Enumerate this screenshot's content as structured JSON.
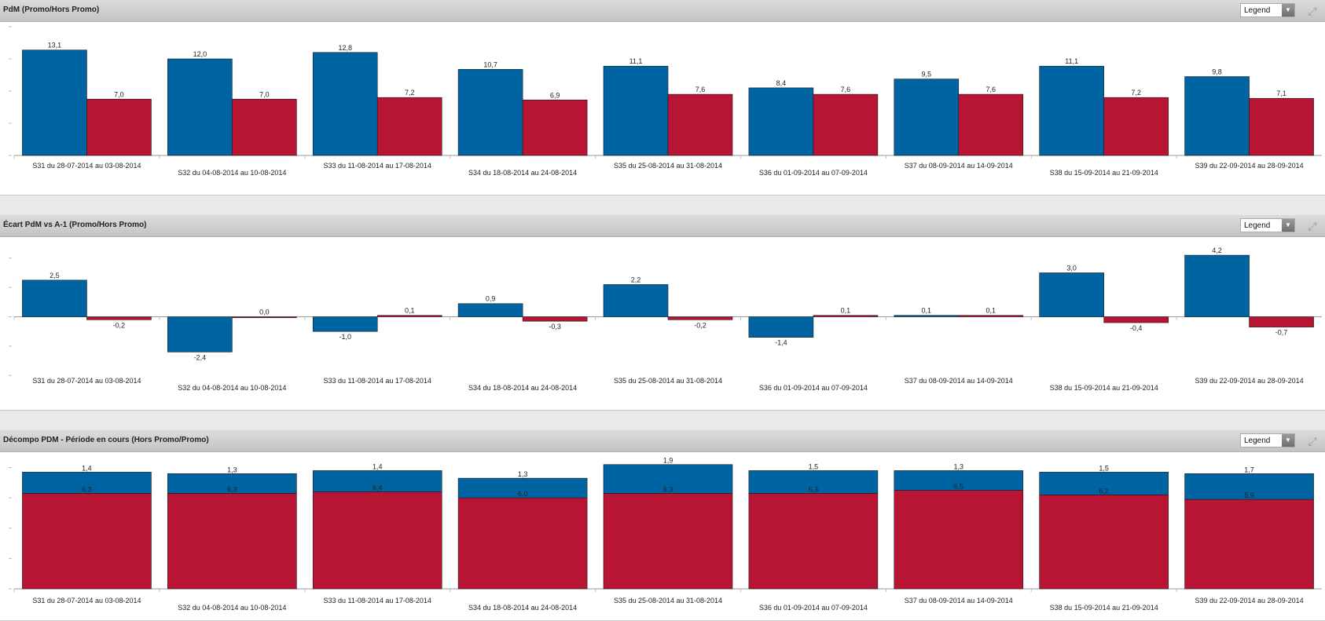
{
  "colors": {
    "blue": "#0064a3",
    "red": "#b81433",
    "axis": "#999999",
    "header": "#cfcfcf"
  },
  "icons": {
    "dropdown": "chevron-down-icon",
    "expand": "expand-icon"
  },
  "chart_data": [
    {
      "type": "bar",
      "title": "PdM (Promo/Hors Promo)",
      "legend_label": "Legend",
      "categories": [
        "S31 du 28-07-2014 au 03-08-2014",
        "S32 du 04-08-2014 au 10-08-2014",
        "S33 du 11-08-2014 au 17-08-2014",
        "S34 du 18-08-2014 au 24-08-2014",
        "S35 du 25-08-2014 au 31-08-2014",
        "S36 du 01-09-2014 au 07-09-2014",
        "S37 du 08-09-2014 au 14-09-2014",
        "S38 du 15-09-2014 au 21-09-2014",
        "S39 du 22-09-2014 au 28-09-2014"
      ],
      "series": [
        {
          "color": "#0064a3",
          "values": [
            13.1,
            12.0,
            12.8,
            10.7,
            11.1,
            8.4,
            9.5,
            11.1,
            9.8
          ],
          "labels": [
            "13,1",
            "12,0",
            "12,8",
            "10,7",
            "11,1",
            "8,4",
            "9,5",
            "11,1",
            "9,8"
          ]
        },
        {
          "color": "#b81433",
          "values": [
            7.0,
            7.0,
            7.2,
            6.9,
            7.6,
            7.6,
            7.6,
            7.2,
            7.1
          ],
          "labels": [
            "7,0",
            "7,0",
            "7,2",
            "6,9",
            "7,6",
            "7,6",
            "7,6",
            "7,2",
            "7,1"
          ]
        }
      ],
      "ylim": [
        0,
        16
      ],
      "grid": false
    },
    {
      "type": "bar",
      "title": "Écart PdM vs A-1 (Promo/Hors Promo)",
      "legend_label": "Legend",
      "categories": [
        "S31 du 28-07-2014 au 03-08-2014",
        "S32 du 04-08-2014 au 10-08-2014",
        "S33 du 11-08-2014 au 17-08-2014",
        "S34 du 18-08-2014 au 24-08-2014",
        "S35 du 25-08-2014 au 31-08-2014",
        "S36 du 01-09-2014 au 07-09-2014",
        "S37 du 08-09-2014 au 14-09-2014",
        "S38 du 15-09-2014 au 21-09-2014",
        "S39 du 22-09-2014 au 28-09-2014"
      ],
      "series": [
        {
          "color": "#0064a3",
          "values": [
            2.5,
            -2.4,
            -1.0,
            0.9,
            2.2,
            -1.4,
            0.1,
            3.0,
            4.2
          ],
          "labels": [
            "2,5",
            "-2,4",
            "-1,0",
            "0,9",
            "2,2",
            "-1,4",
            "0,1",
            "3,0",
            "4,2"
          ]
        },
        {
          "color": "#b81433",
          "values": [
            -0.2,
            0.0,
            0.1,
            -0.3,
            -0.2,
            0.1,
            0.1,
            -0.4,
            -0.7
          ],
          "labels": [
            "-0,2",
            "0,0",
            "0,1",
            "-0,3",
            "-0,2",
            "0,1",
            "0,1",
            "-0,4",
            "-0,7"
          ]
        }
      ],
      "ylim": [
        -4.2,
        4.9
      ],
      "grid": false
    },
    {
      "type": "stacked-bar",
      "title": "Décompo PDM - Période en cours (Hors Promo/Promo)",
      "legend_label": "Legend",
      "categories": [
        "S31 du 28-07-2014 au 03-08-2014",
        "S32 du 04-08-2014 au 10-08-2014",
        "S33 du 11-08-2014 au 17-08-2014",
        "S34 du 18-08-2014 au 24-08-2014",
        "S35 du 25-08-2014 au 31-08-2014",
        "S36 du 01-09-2014 au 07-09-2014",
        "S37 du 08-09-2014 au 14-09-2014",
        "S38 du 15-09-2014 au 21-09-2014",
        "S39 du 22-09-2014 au 28-09-2014"
      ],
      "series": [
        {
          "color": "#b81433",
          "values": [
            6.3,
            6.3,
            6.4,
            6.0,
            6.3,
            6.3,
            6.5,
            6.2,
            5.9
          ],
          "labels": [
            "6,3",
            "6,3",
            "6,4",
            "6,0",
            "6,3",
            "6,3",
            "6,5",
            "6,2",
            "5,9"
          ]
        },
        {
          "color": "#0064a3",
          "values": [
            1.4,
            1.3,
            1.4,
            1.3,
            1.9,
            1.5,
            1.3,
            1.5,
            1.7
          ],
          "labels": [
            "1,4",
            "1,3",
            "1,4",
            "1,3",
            "1,9",
            "1,5",
            "1,3",
            "1,5",
            "1,7"
          ]
        }
      ],
      "ylim": [
        0,
        8.6
      ],
      "grid": false
    }
  ]
}
